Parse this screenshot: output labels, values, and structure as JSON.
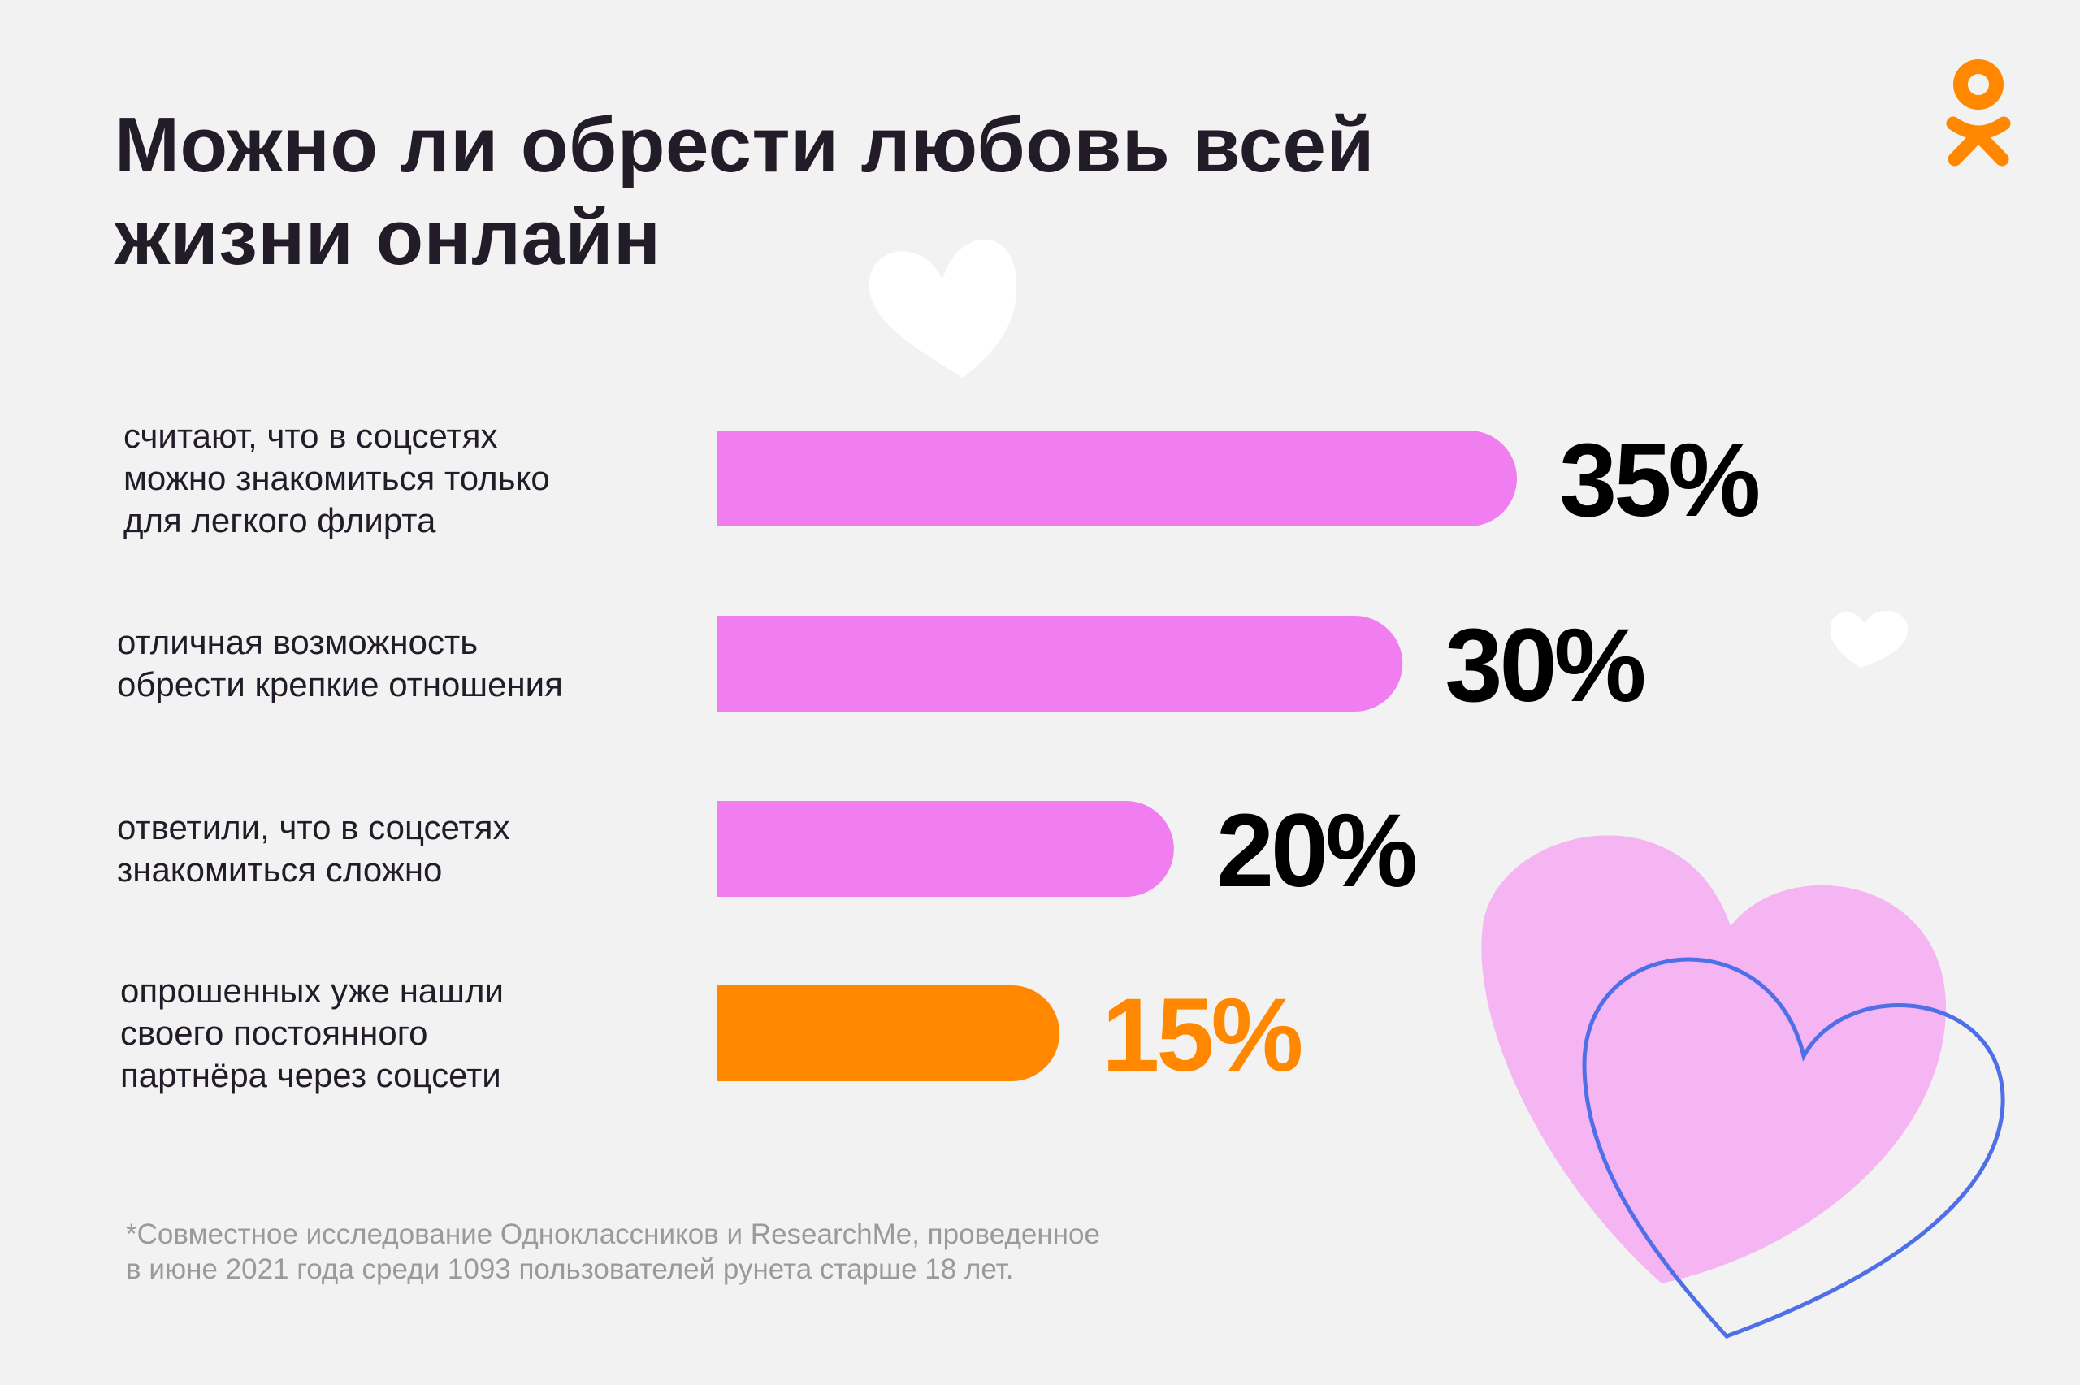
{
  "title": "Можно ли обрести любовь всей жизни онлайн",
  "logo": {
    "icon": "odnoklassniki-logo-icon",
    "color": "#ff8800"
  },
  "colors": {
    "bar": "#f07ef0",
    "highlight_bar": "#ff8800",
    "text": "#221c28",
    "value": "#000000",
    "highlight_value": "#ff8800"
  },
  "chart_data": {
    "type": "bar",
    "orientation": "horizontal",
    "categories": [
      [
        "считают, что в соцсетях",
        "можно знакомиться только",
        "для легкого флирта"
      ],
      [
        "отличная возможность",
        "обрести крепкие отношения"
      ],
      [
        "ответили, что в соцсетях",
        "знакомиться сложно"
      ],
      [
        "опрошенных уже нашли",
        "своего постоянного",
        "партнёра через соцсети"
      ]
    ],
    "values": [
      35,
      30,
      20,
      15
    ],
    "value_labels": [
      "35%",
      "30%",
      "20%",
      "15%"
    ],
    "highlight_index": 3,
    "unit": "%",
    "xlim": [
      0,
      35
    ]
  },
  "footnote": [
    "*Совместное исследование Одноклассников и ResearchMe, проведенное",
    "в июне 2021 года среди 1093 пользователей рунета старше 18 лет."
  ]
}
